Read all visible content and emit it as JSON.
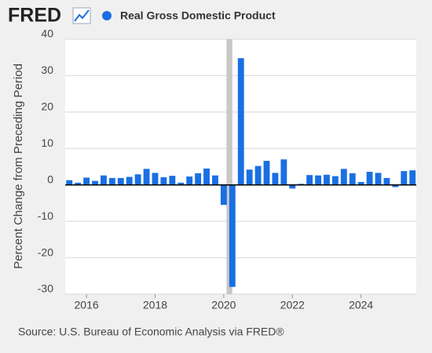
{
  "header": {
    "logo": "FRED"
  },
  "chart_data": {
    "type": "bar",
    "series": [
      {
        "name": "Real Gross Domestic Product",
        "color": "#1a6fe3",
        "values": [
          1.3,
          0.6,
          2.0,
          1.1,
          2.6,
          1.9,
          1.9,
          2.2,
          2.9,
          4.4,
          3.3,
          2.1,
          2.5,
          0.6,
          2.3,
          3.2,
          4.5,
          2.6,
          -5.5,
          -28.0,
          34.8,
          4.2,
          5.2,
          6.6,
          3.3,
          7.0,
          -1.0,
          0.3,
          2.7,
          2.6,
          2.8,
          2.4,
          4.4,
          3.2,
          0.8,
          3.6,
          3.3,
          1.9,
          -0.6,
          3.8,
          4.0
        ]
      }
    ],
    "x": [
      2015.5,
      2015.75,
      2016,
      2016.25,
      2016.5,
      2016.75,
      2017,
      2017.25,
      2017.5,
      2017.75,
      2018,
      2018.25,
      2018.5,
      2018.75,
      2019,
      2019.25,
      2019.5,
      2019.75,
      2020,
      2020.25,
      2020.5,
      2020.75,
      2021,
      2021.25,
      2021.5,
      2021.75,
      2022,
      2022.25,
      2022.5,
      2022.75,
      2023,
      2023.25,
      2023.5,
      2023.75,
      2024,
      2024.25,
      2024.5,
      2024.75,
      2025,
      2025.25,
      2025.5
    ],
    "xlim": [
      2015.38,
      2025.61
    ],
    "xticks": [
      2016,
      2018,
      2020,
      2022,
      2024
    ],
    "ylim": [
      -30,
      40
    ],
    "yticks": [
      -30,
      -20,
      -10,
      0,
      10,
      20,
      30,
      40
    ],
    "y_label": "Percent Change from Preceding Period",
    "recessions": [
      [
        2020.08,
        2020.25
      ]
    ],
    "grid": true,
    "source": "Source: U.S. Bureau of Economic Analysis via FRED®"
  }
}
